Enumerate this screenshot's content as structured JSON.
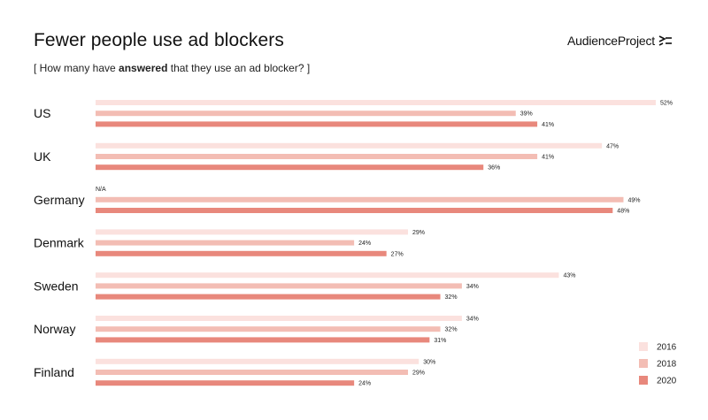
{
  "header": {
    "title": "Fewer people use ad blockers",
    "subtitle_open": "[ How many have ",
    "subtitle_bold": "answered",
    "subtitle_close": " that they use an ad blocker? ]",
    "brand": "AudienceProject",
    "brand_icon": "chevrons-icon"
  },
  "chart_data": {
    "type": "bar",
    "orientation": "horizontal",
    "title": "Fewer people use ad blockers",
    "subtitle": "[ How many have answered that they use an ad blocker? ]",
    "categories": [
      "US",
      "UK",
      "Germany",
      "Denmark",
      "Sweden",
      "Norway",
      "Finland"
    ],
    "series": [
      {
        "name": "2016",
        "color": "#fbe1de",
        "values": [
          52,
          47,
          null,
          29,
          43,
          34,
          30
        ],
        "labels": [
          "52%",
          "47%",
          "N/A",
          "29%",
          "43%",
          "34%",
          "30%"
        ]
      },
      {
        "name": "2018",
        "color": "#f3bdb4",
        "values": [
          39,
          41,
          49,
          24,
          34,
          32,
          29
        ],
        "labels": [
          "39%",
          "41%",
          "49%",
          "24%",
          "34%",
          "32%",
          "29%"
        ]
      },
      {
        "name": "2020",
        "color": "#e8887c",
        "values": [
          41,
          36,
          48,
          27,
          32,
          31,
          24
        ],
        "labels": [
          "41%",
          "36%",
          "48%",
          "27%",
          "32%",
          "31%",
          "24%"
        ]
      }
    ],
    "xlim": [
      0,
      52
    ],
    "grid": false,
    "legend_position": "bottom-right"
  }
}
